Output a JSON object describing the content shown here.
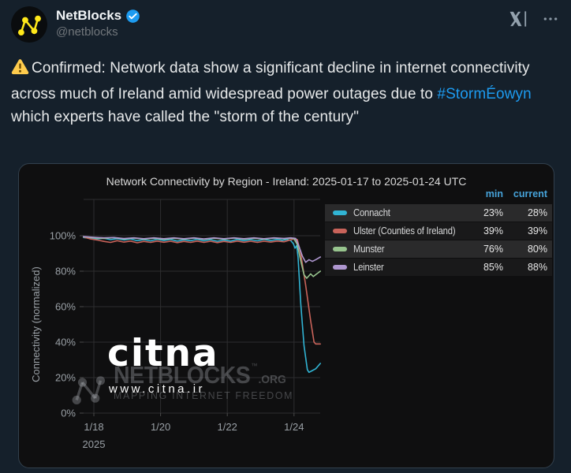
{
  "tweet": {
    "author": {
      "name": "NetBlocks",
      "handle": "@netblocks"
    },
    "icons": {
      "avatar": "netblocks-network-logo",
      "verified": "verified-badge",
      "x_logo": "x-logo",
      "more": "more-ellipsis"
    },
    "text": {
      "warning_icon": "warning-triangle",
      "part1": "Confirmed: Network data show a significant decline in internet connectivity across much of Ireland amid widespread power outages due to ",
      "hashtag": "#StormÉowyn",
      "part2": " which experts have called the \"storm of the century\""
    }
  },
  "chart_card": {
    "title": "Network Connectivity by Region - Ireland: 2025-01-17 to 2025-01-24 UTC",
    "legend_headers": {
      "min": "min",
      "current": "current"
    },
    "watermarks": {
      "citna_logo": "citna",
      "citna_url": "www.citna.ir",
      "netblocks_name": "NETBLOCKS",
      "netblocks_trademark": "™",
      "netblocks_suffix": ".ORG",
      "netblocks_tagline": "MAPPING INTERNET FREEDOM"
    }
  },
  "colors": {
    "page_background": "#15202b",
    "card_background": "#0f0f10",
    "hashtag_blue": "#1d9bf0",
    "verified_blue": "#1d9bf0",
    "legend_header_blue": "#46a3da",
    "warning_yellow": "#ffcc4d",
    "avatar_yellow": "#ffe81a"
  },
  "chart_data": {
    "type": "line",
    "title": "Network Connectivity by Region - Ireland: 2025-01-17 to 2025-01-24 UTC",
    "xlabel": "",
    "ylabel": "Connectivity (normalized)",
    "y_unit": "%",
    "ylim": [
      0,
      120
    ],
    "grid": true,
    "legend_position": "top-right",
    "x_ticks": [
      {
        "day": 1,
        "label": "1/18",
        "sublabel": "2025"
      },
      {
        "day": 3,
        "label": "1/20"
      },
      {
        "day": 5,
        "label": "1/22"
      },
      {
        "day": 7,
        "label": "1/24"
      }
    ],
    "y_ticks": [
      {
        "value": 0,
        "label": "0%"
      },
      {
        "value": 20,
        "label": "20%"
      },
      {
        "value": 40,
        "label": "40%"
      },
      {
        "value": 60,
        "label": "60%"
      },
      {
        "value": 80,
        "label": "80%"
      },
      {
        "value": 100,
        "label": "100%"
      }
    ],
    "series": [
      {
        "name": "Connacht",
        "color": "#31b4d4",
        "min": "23%",
        "current": "28%",
        "points": [
          [
            0.69,
            99
          ],
          [
            0.9,
            98.6
          ],
          [
            1.1,
            98.2
          ],
          [
            1.3,
            98.6
          ],
          [
            1.5,
            97.8
          ],
          [
            1.7,
            98.3
          ],
          [
            1.9,
            97.6
          ],
          [
            2.1,
            98.2
          ],
          [
            2.3,
            97.2
          ],
          [
            2.5,
            97.8
          ],
          [
            2.7,
            97.1
          ],
          [
            2.9,
            98.0
          ],
          [
            3.1,
            97.3
          ],
          [
            3.3,
            97.9
          ],
          [
            3.5,
            97.0
          ],
          [
            3.7,
            97.7
          ],
          [
            3.9,
            97.2
          ],
          [
            4.1,
            98.0
          ],
          [
            4.3,
            97.1
          ],
          [
            4.5,
            97.8
          ],
          [
            4.7,
            96.9
          ],
          [
            4.9,
            97.6
          ],
          [
            5.1,
            97.0
          ],
          [
            5.3,
            97.9
          ],
          [
            5.5,
            97.2
          ],
          [
            5.7,
            97.8
          ],
          [
            5.9,
            97.1
          ],
          [
            6.1,
            97.9
          ],
          [
            6.3,
            97.3
          ],
          [
            6.5,
            97.9
          ],
          [
            6.65,
            97.4
          ],
          [
            6.8,
            97.9
          ],
          [
            6.9,
            97.3
          ],
          [
            6.98,
            95.5
          ],
          [
            7.03,
            93.0
          ],
          [
            7.08,
            94.5
          ],
          [
            7.12,
            88.0
          ],
          [
            7.2,
            62.0
          ],
          [
            7.3,
            38.0
          ],
          [
            7.4,
            24.5
          ],
          [
            7.45,
            23.0
          ],
          [
            7.55,
            24.0
          ],
          [
            7.65,
            25.0
          ],
          [
            7.79,
            28.0
          ]
        ]
      },
      {
        "name": "Ulster (Counties of Ireland)",
        "color": "#c9635a",
        "min": "39%",
        "current": "39%",
        "points": [
          [
            0.69,
            99.3
          ],
          [
            0.9,
            98.2
          ],
          [
            1.1,
            97.6
          ],
          [
            1.3,
            96.8
          ],
          [
            1.5,
            96.2
          ],
          [
            1.7,
            97.2
          ],
          [
            1.9,
            96.4
          ],
          [
            2.1,
            97.0
          ],
          [
            2.3,
            96.0
          ],
          [
            2.5,
            96.8
          ],
          [
            2.7,
            96.2
          ],
          [
            2.9,
            97.0
          ],
          [
            3.1,
            96.3
          ],
          [
            3.3,
            96.9
          ],
          [
            3.5,
            96.1
          ],
          [
            3.7,
            96.8
          ],
          [
            3.9,
            96.2
          ],
          [
            4.1,
            97.0
          ],
          [
            4.3,
            96.2
          ],
          [
            4.5,
            96.9
          ],
          [
            4.7,
            96.1
          ],
          [
            4.9,
            96.8
          ],
          [
            5.1,
            96.2
          ],
          [
            5.3,
            97.0
          ],
          [
            5.5,
            96.3
          ],
          [
            5.7,
            96.9
          ],
          [
            5.9,
            96.2
          ],
          [
            6.1,
            96.9
          ],
          [
            6.3,
            96.4
          ],
          [
            6.5,
            97.0
          ],
          [
            6.7,
            96.6
          ],
          [
            6.85,
            97.4
          ],
          [
            7.0,
            98.2
          ],
          [
            7.1,
            97.8
          ],
          [
            7.2,
            90.0
          ],
          [
            7.35,
            72.0
          ],
          [
            7.5,
            52.0
          ],
          [
            7.6,
            40.0
          ],
          [
            7.65,
            39.0
          ],
          [
            7.79,
            39.0
          ]
        ]
      },
      {
        "name": "Munster",
        "color": "#97c48e",
        "min": "76%",
        "current": "80%",
        "points": [
          [
            0.69,
            99.4
          ],
          [
            1.0,
            98.9
          ],
          [
            1.3,
            98.5
          ],
          [
            1.6,
            98.9
          ],
          [
            1.9,
            98.2
          ],
          [
            2.2,
            98.7
          ],
          [
            2.5,
            98.1
          ],
          [
            2.8,
            98.6
          ],
          [
            3.1,
            98.0
          ],
          [
            3.4,
            98.6
          ],
          [
            3.7,
            98.1
          ],
          [
            4.0,
            98.7
          ],
          [
            4.3,
            98.0
          ],
          [
            4.6,
            98.6
          ],
          [
            4.9,
            98.1
          ],
          [
            5.2,
            98.7
          ],
          [
            5.5,
            98.1
          ],
          [
            5.8,
            98.6
          ],
          [
            6.1,
            98.1
          ],
          [
            6.4,
            98.7
          ],
          [
            6.7,
            98.3
          ],
          [
            6.9,
            98.6
          ],
          [
            7.0,
            98.3
          ],
          [
            7.1,
            95.0
          ],
          [
            7.2,
            86.0
          ],
          [
            7.3,
            78.0
          ],
          [
            7.38,
            76.0
          ],
          [
            7.5,
            78.5
          ],
          [
            7.58,
            77.0
          ],
          [
            7.68,
            78.5
          ],
          [
            7.79,
            80.0
          ]
        ]
      },
      {
        "name": "Leinster",
        "color": "#ae96cf",
        "min": "85%",
        "current": "88%",
        "points": [
          [
            0.69,
            99.5
          ],
          [
            1.0,
            99.1
          ],
          [
            1.3,
            98.8
          ],
          [
            1.6,
            99.0
          ],
          [
            1.9,
            98.4
          ],
          [
            2.2,
            98.8
          ],
          [
            2.5,
            98.3
          ],
          [
            2.8,
            98.8
          ],
          [
            3.1,
            98.3
          ],
          [
            3.4,
            98.8
          ],
          [
            3.7,
            98.3
          ],
          [
            4.0,
            98.8
          ],
          [
            4.3,
            98.2
          ],
          [
            4.6,
            98.8
          ],
          [
            4.9,
            98.3
          ],
          [
            5.2,
            98.8
          ],
          [
            5.5,
            98.3
          ],
          [
            5.8,
            98.8
          ],
          [
            6.1,
            98.3
          ],
          [
            6.4,
            98.8
          ],
          [
            6.7,
            98.5
          ],
          [
            6.9,
            98.8
          ],
          [
            7.05,
            98.5
          ],
          [
            7.15,
            94.0
          ],
          [
            7.25,
            88.5
          ],
          [
            7.35,
            85.0
          ],
          [
            7.45,
            86.5
          ],
          [
            7.55,
            85.5
          ],
          [
            7.65,
            86.5
          ],
          [
            7.79,
            88.0
          ]
        ]
      }
    ]
  }
}
